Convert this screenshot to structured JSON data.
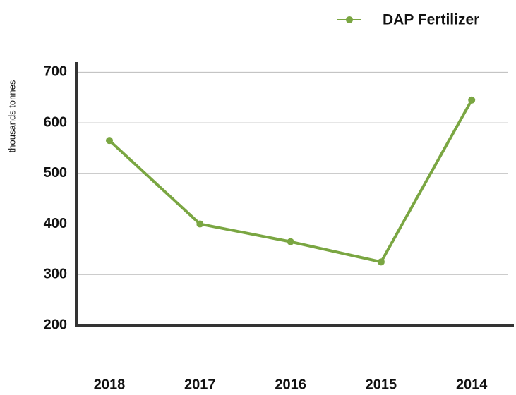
{
  "chart_data": {
    "type": "line",
    "y_axis_label": "thousands tonnes",
    "categories": [
      "2018",
      "2017",
      "2016",
      "2015",
      "2014"
    ],
    "series": [
      {
        "name": "DAP Fertilizer",
        "color": "#7aa642",
        "values": [
          565,
          400,
          365,
          325,
          645
        ]
      }
    ],
    "ylim": [
      200,
      720
    ],
    "yticks": [
      200,
      300,
      400,
      500,
      600,
      700
    ],
    "grid": true,
    "legend": "top-right"
  }
}
